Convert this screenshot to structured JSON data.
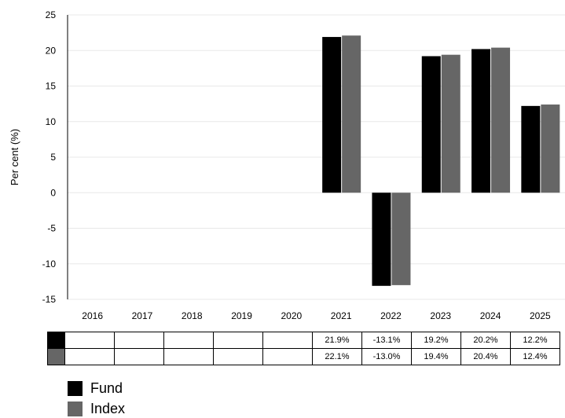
{
  "chart_data": {
    "type": "bar",
    "categories": [
      "2016",
      "2017",
      "2018",
      "2019",
      "2020",
      "2021",
      "2022",
      "2023",
      "2024",
      "2025"
    ],
    "series": [
      {
        "name": "Fund",
        "color": "#000000",
        "values": [
          null,
          null,
          null,
          null,
          null,
          21.9,
          -13.1,
          19.2,
          20.2,
          12.2
        ],
        "labels": [
          "",
          "",
          "",
          "",
          "",
          "21.9%",
          "-13.1%",
          "19.2%",
          "20.2%",
          "12.2%"
        ]
      },
      {
        "name": "Index",
        "color": "#666666",
        "values": [
          null,
          null,
          null,
          null,
          null,
          22.1,
          -13.0,
          19.4,
          20.4,
          12.4
        ],
        "labels": [
          "",
          "",
          "",
          "",
          "",
          "22.1%",
          "-13.0%",
          "19.4%",
          "20.4%",
          "12.4%"
        ]
      }
    ],
    "ylabel": "Per cent (%)",
    "ylim": [
      -15,
      25
    ],
    "yticks": [
      25,
      20,
      15,
      10,
      5,
      0,
      -5,
      -10,
      -15
    ],
    "grid": true,
    "legend_position": "bottom-left"
  }
}
